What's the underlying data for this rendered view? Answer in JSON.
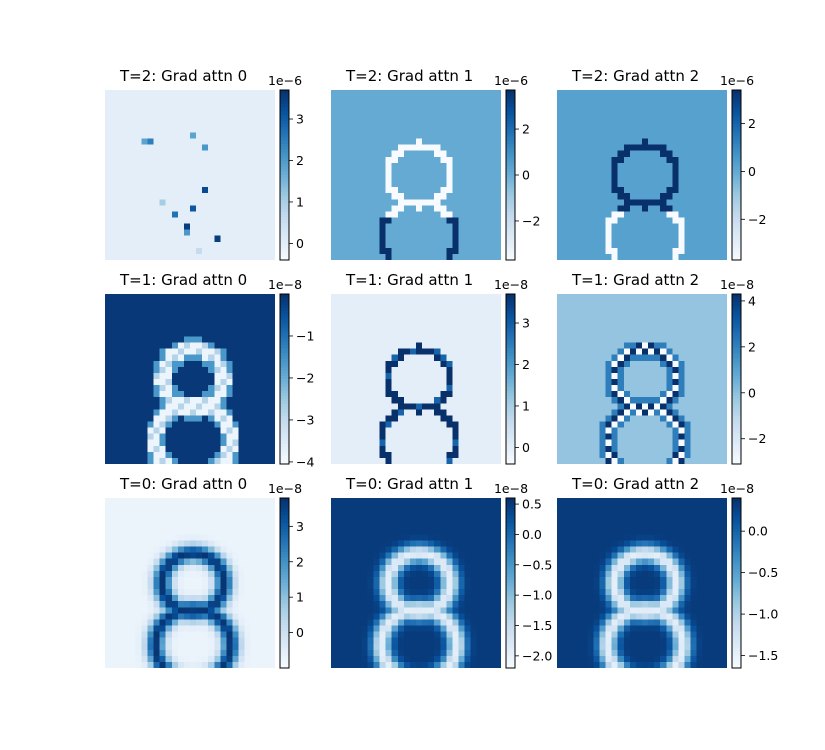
{
  "chart_data": [
    {
      "type": "heatmap",
      "title": "T=2: Grad attn 0",
      "colormap": "Blues",
      "grid": false,
      "pattern": "sparse_dots",
      "offset_text": "1e−6",
      "cbar": {
        "range": [
          -0.4,
          3.7
        ],
        "ticks": [
          0,
          1,
          2,
          3
        ],
        "tick_labels": [
          "0",
          "1",
          "2",
          "3"
        ]
      }
    },
    {
      "type": "heatmap",
      "title": "T=2: Grad attn 1",
      "colormap": "Blues",
      "grid": false,
      "pattern": "outline_light_on_mid",
      "offset_text": "1e−6",
      "cbar": {
        "range": [
          -3.7,
          3.7
        ],
        "ticks": [
          -2,
          0,
          2
        ],
        "tick_labels": [
          "−2",
          "0",
          "2"
        ]
      }
    },
    {
      "type": "heatmap",
      "title": "T=2: Grad attn 2",
      "colormap": "Blues",
      "grid": false,
      "pattern": "outline_dark_top_light_bottom",
      "offset_text": "1e−6",
      "cbar": {
        "range": [
          -3.7,
          3.4
        ],
        "ticks": [
          -2,
          0,
          2
        ],
        "tick_labels": [
          "−2",
          "0",
          "2"
        ]
      }
    },
    {
      "type": "heatmap",
      "title": "T=1: Grad attn 0",
      "colormap": "Blues",
      "grid": false,
      "pattern": "outline_on_dark",
      "offset_text": "1e−8",
      "cbar": {
        "range": [
          -4.05,
          0
        ],
        "ticks": [
          -1,
          -2,
          -3,
          -4
        ],
        "tick_labels": [
          "−1",
          "−2",
          "−3",
          "−4"
        ]
      }
    },
    {
      "type": "heatmap",
      "title": "T=1: Grad attn 1",
      "colormap": "Blues",
      "grid": false,
      "pattern": "dark_outline_on_light",
      "offset_text": "1e−8",
      "cbar": {
        "range": [
          -0.4,
          3.7
        ],
        "ticks": [
          0,
          1,
          2,
          3
        ],
        "tick_labels": [
          "0",
          "1",
          "2",
          "3"
        ]
      }
    },
    {
      "type": "heatmap",
      "title": "T=1: Grad attn 2",
      "colormap": "Blues",
      "grid": false,
      "pattern": "outline_mixed",
      "offset_text": "1e−8",
      "cbar": {
        "range": [
          -3.1,
          4.3
        ],
        "ticks": [
          -2,
          0,
          2,
          4
        ],
        "tick_labels": [
          "−2",
          "0",
          "2",
          "4"
        ]
      }
    },
    {
      "type": "heatmap",
      "title": "T=0: Grad attn 0",
      "colormap": "Blues",
      "grid": false,
      "pattern": "blurred_dark_on_light",
      "offset_text": "1e−8",
      "cbar": {
        "range": [
          -1.0,
          3.8
        ],
        "ticks": [
          0,
          1,
          2,
          3
        ],
        "tick_labels": [
          "0",
          "1",
          "2",
          "3"
        ]
      }
    },
    {
      "type": "heatmap",
      "title": "T=0: Grad attn 1",
      "colormap": "Blues",
      "grid": false,
      "pattern": "blurred_light_on_dark",
      "offset_text": "1e−8",
      "cbar": {
        "range": [
          -2.2,
          0.6
        ],
        "ticks": [
          0.5,
          0,
          -0.5,
          -1,
          -1.5,
          -2
        ],
        "tick_labels": [
          "0.5",
          "0.0",
          "−0.5",
          "−1.0",
          "−1.5",
          "−2.0"
        ]
      }
    },
    {
      "type": "heatmap",
      "title": "T=0: Grad attn 2",
      "colormap": "Blues",
      "grid": false,
      "pattern": "blurred_light_on_dark",
      "offset_text": "1e−8",
      "cbar": {
        "range": [
          -1.65,
          0.4
        ],
        "ticks": [
          0,
          -0.5,
          -1,
          -1.5
        ],
        "tick_labels": [
          "0.0",
          "−0.5",
          "−1.0",
          "−1.5"
        ]
      }
    }
  ]
}
